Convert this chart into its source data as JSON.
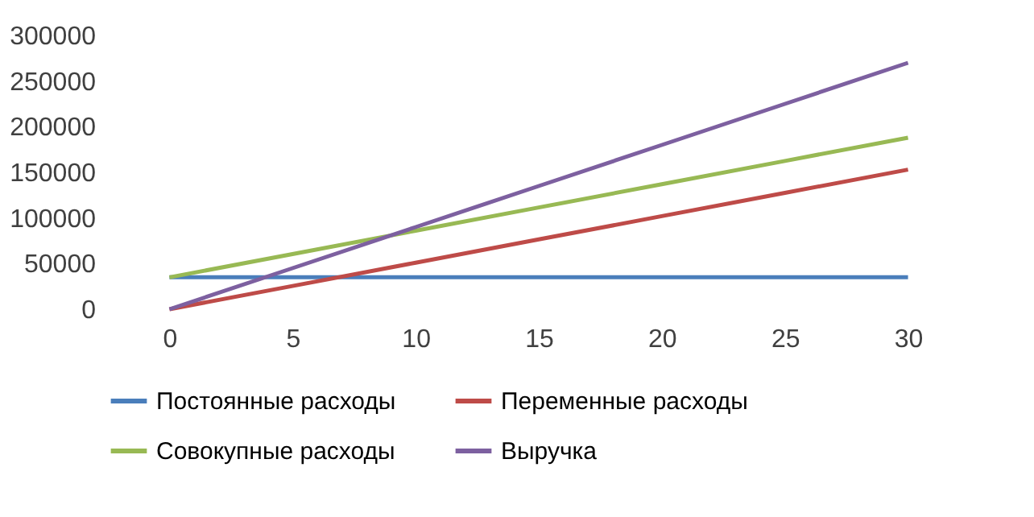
{
  "chart_data": {
    "type": "line",
    "categories": [
      "0",
      "5",
      "10",
      "15",
      "20",
      "25",
      "30"
    ],
    "ylim": [
      0,
      300000
    ],
    "yticks": [
      0,
      50000,
      100000,
      150000,
      200000,
      250000,
      300000
    ],
    "grid": false,
    "legend": "bottom",
    "marker": "none",
    "series": [
      {
        "name": "Постоянные расходы",
        "color": "#4a7ebb",
        "values": [
          35000,
          35000,
          35000,
          35000,
          35000,
          35000,
          35000
        ]
      },
      {
        "name": "Переменные расходы",
        "color": "#be4b48",
        "values": [
          0,
          25500,
          51000,
          76500,
          102000,
          127500,
          153000
        ]
      },
      {
        "name": "Совокупные расходы",
        "color": "#98b954",
        "values": [
          35000,
          60500,
          86000,
          111500,
          137000,
          162500,
          188000
        ]
      },
      {
        "name": "Выручка",
        "color": "#7d60a0",
        "values": [
          0,
          45000,
          90000,
          135000,
          180000,
          225000,
          270000
        ]
      }
    ]
  }
}
